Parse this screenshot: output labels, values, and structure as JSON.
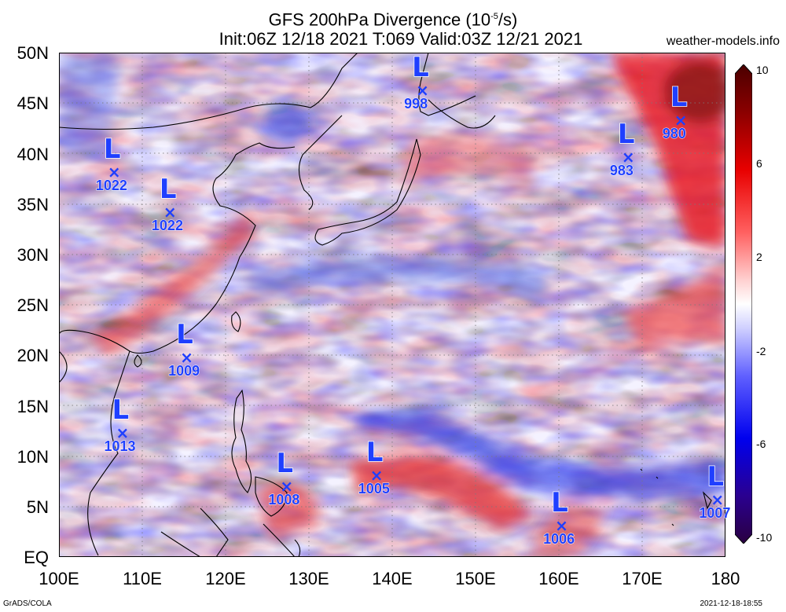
{
  "header": {
    "title_line1": "GFS 200hPa Divergence (10",
    "title_exp": "-5",
    "title_unit": "/s)",
    "title_line2": "Init:06Z 12/18 2021 T:069 Valid:03Z 12/21 2021",
    "site": "weather-models.info"
  },
  "footer": {
    "credit": "GrADS/COLA",
    "timestamp": "2021-12-18-18:55"
  },
  "map": {
    "lat_labels": [
      "50N",
      "45N",
      "40N",
      "35N",
      "30N",
      "25N",
      "20N",
      "15N",
      "10N",
      "5N",
      "EQ"
    ],
    "lon_labels": [
      "100E",
      "110E",
      "120E",
      "130E",
      "140E",
      "150E",
      "160E",
      "170E",
      "180"
    ],
    "extent": {
      "lon_min": 100,
      "lon_max": 180,
      "lat_min": 0,
      "lat_max": 50
    },
    "colorbar_labels": [
      "10",
      "6",
      "2",
      "-2",
      "-6",
      "-10"
    ],
    "colorbar_colors": [
      "#4b0082",
      "#0000ff",
      "#7f7fff",
      "#ffffff",
      "#ff7f7f",
      "#ff0000",
      "#8b0000"
    ],
    "lows": [
      {
        "pressure": "998",
        "lon": 143.5,
        "lat": 46.2
      },
      {
        "pressure": "980",
        "lon": 174.5,
        "lat": 43.2
      },
      {
        "pressure": "983",
        "lon": 168.2,
        "lat": 39.6
      },
      {
        "pressure": "1022",
        "lon": 106.5,
        "lat": 38.1
      },
      {
        "pressure": "1022",
        "lon": 113.2,
        "lat": 34.1
      },
      {
        "pressure": "1009",
        "lon": 115.2,
        "lat": 19.7
      },
      {
        "pressure": "1013",
        "lon": 107.5,
        "lat": 12.2
      },
      {
        "pressure": "1008",
        "lon": 127.2,
        "lat": 6.9
      },
      {
        "pressure": "1005",
        "lon": 138.0,
        "lat": 8.0
      },
      {
        "pressure": "1006",
        "lon": 160.2,
        "lat": 3.0
      },
      {
        "pressure": "1007",
        "lon": 178.9,
        "lat": 5.6
      }
    ]
  }
}
